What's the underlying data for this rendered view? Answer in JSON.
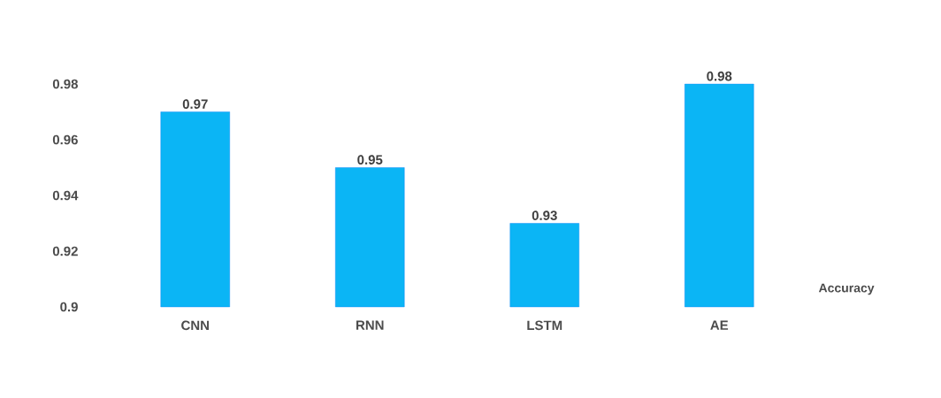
{
  "chart_data": {
    "type": "bar",
    "categories": [
      "CNN",
      "RNN",
      "LSTM",
      "AE"
    ],
    "series": [
      {
        "name": "Accuracy",
        "color": "#0bb5f5",
        "values": [
          0.97,
          0.95,
          0.93,
          0.98
        ]
      }
    ],
    "ylim": [
      0.9,
      0.98
    ],
    "yticks": [
      0.9,
      0.92,
      0.94,
      0.96,
      0.98
    ],
    "data_labels": true,
    "grid": false
  }
}
